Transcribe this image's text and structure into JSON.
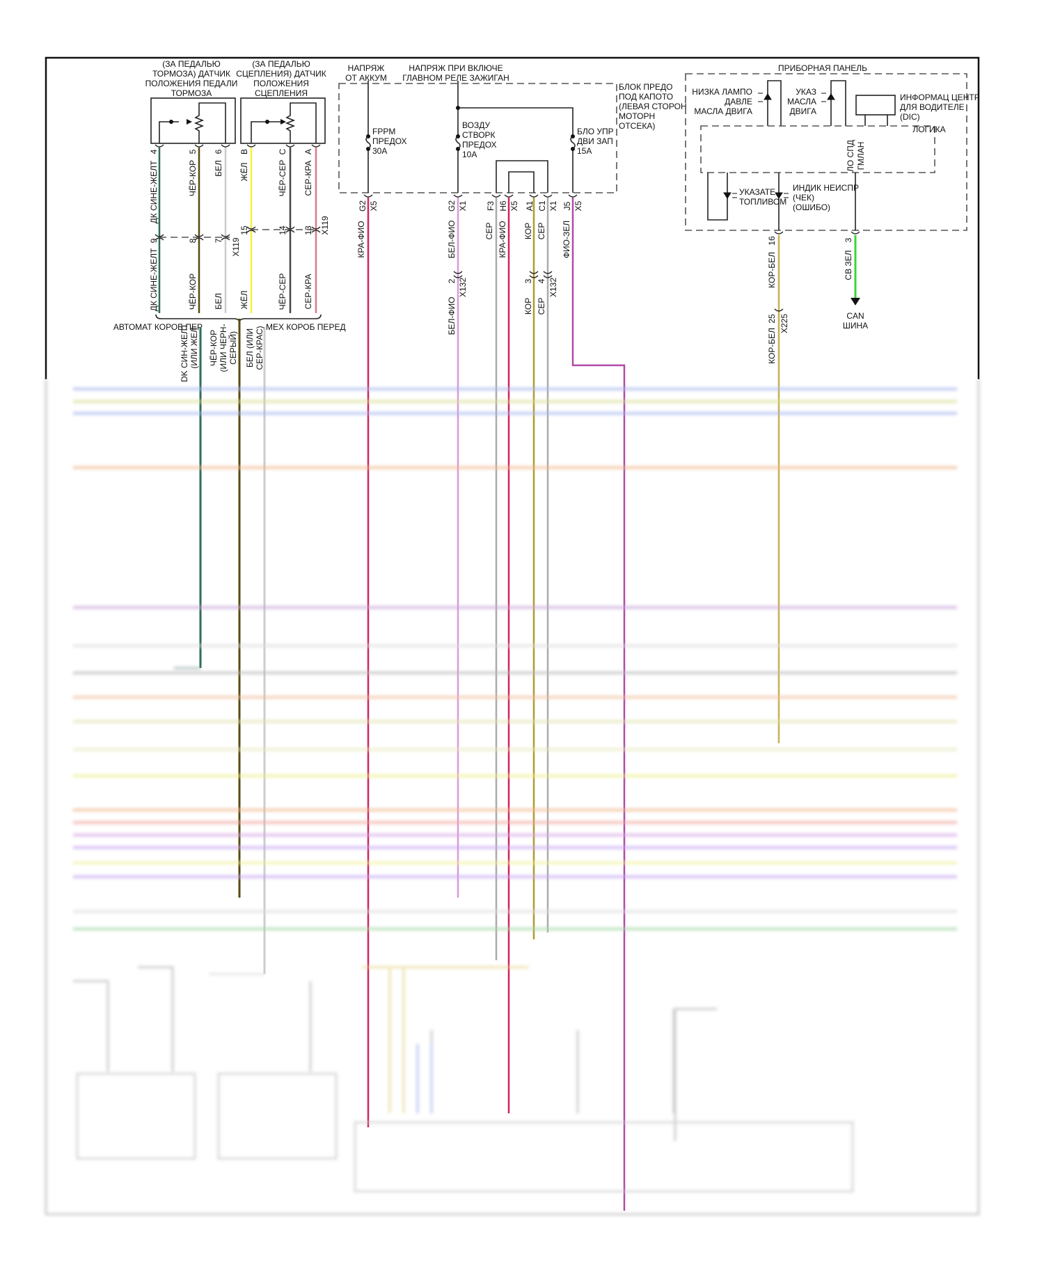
{
  "sensors": {
    "brake_title": [
      "(ЗА ПЕДАЛЬЮ",
      "ТОРМОЗА) ДАТЧИК",
      "ПОЛОЖЕНИЯ ПЕДАЛИ",
      "ТОРМОЗА"
    ],
    "clutch_title": [
      "(ЗА ПЕДАЛЬЮ",
      "СЦЕПЛЕНИЯ) ДАТЧИК",
      "ПОЛОЖЕНИЯ",
      "СЦЕПЛЕНИЯ"
    ]
  },
  "wires_top": [
    {
      "label": "ДК СИНЕ-ЖЕЛТ",
      "pin": "4",
      "pin2": "9",
      "color": "#2e6b5a"
    },
    {
      "label": "ЧЁР-КОР",
      "pin": "5",
      "pin2": "8",
      "color": "#5a4a10"
    },
    {
      "label": "БЕЛ",
      "pin": "6",
      "pin2": "7",
      "color": "#cccccc"
    },
    {
      "label": "ЖЁЛ",
      "pin": "B",
      "pin2": "15",
      "color": "#f5f03a"
    },
    {
      "label": "ЧЁР-СЕР",
      "pin": "C",
      "pin2": "14",
      "color": "#444444"
    },
    {
      "label": "СЕР-КРА",
      "pin": "A",
      "pin2": "13",
      "color": "#d97a8a"
    }
  ],
  "connectors": {
    "x119": "X119",
    "x132": "X132",
    "x225": "X225",
    "x5": "X5",
    "x1": "X1"
  },
  "transmission": {
    "auto": "АВТОМАТ КОРОБ ПЕР",
    "manual": "МЕХ КОРОБ ПЕРЕД",
    "alt1": [
      "DK СИН-ЖЕЛТ",
      "(ИЛИ ЖЕЛ"
    ],
    "alt2": [
      "ЧЁР-КОР",
      "(ИЛИ ЧЕРН-",
      "СЕРЫЙ)"
    ],
    "alt3": [
      "БЕЛ (ИЛИ",
      "СЕР-КРАС)"
    ]
  },
  "fuse_block": {
    "batt_label": [
      "НАПРЯЖ",
      "ОТ АККУМ"
    ],
    "ign_label": [
      "НАПРЯЖ ПРИ ВКЛЮЧЕ",
      "ГЛАВНОМ РЕЛЕ ЗАЖИГАН"
    ],
    "block_label": [
      "БЛОК ПРЕДО",
      "ПОД КАПОТО",
      "(ЛЕВАЯ СТОРОН",
      "МОТОРН",
      "ОТСЕКА)"
    ],
    "fuse1": [
      "FPPM",
      "ПРЕДОХ",
      "30A"
    ],
    "fuse2": [
      "ВОЗДУ",
      "СТВОРК",
      "ПРЕДОХ",
      "10A"
    ],
    "fuse3": [
      "БЛО УПР",
      "ДВИ ЗАП",
      "15A"
    ],
    "wires": [
      {
        "pin": "G2",
        "conn": "X5",
        "label": "КРА-ФИО",
        "color": "#d0245a"
      },
      {
        "pin": "G2",
        "conn": "X1",
        "label": "БЕЛ-ФИО",
        "label2": "БЕЛ-ФИО",
        "pin2": "2",
        "color": "#d99ad9"
      },
      {
        "pin": "F3",
        "label": "СЕР",
        "color": "#aaaaaa"
      },
      {
        "pin": "H6",
        "conn": "X5",
        "label": "КРА-ФИО",
        "color": "#d0245a"
      },
      {
        "pin": "A1",
        "label": "КОР",
        "label2": "КОР",
        "pin2": "3",
        "color": "#b09a30"
      },
      {
        "pin": "C1",
        "conn": "X1",
        "label": "СЕР",
        "label2": "СЕР",
        "pin2": "4",
        "color": "#aaaaaa"
      },
      {
        "pin": "J5",
        "conn": "X5",
        "label": "ФИО-ЗЕЛ",
        "color": "#b04aa8"
      }
    ]
  },
  "instrument_panel": {
    "title": "ПРИБОРНАЯ ПАНЕЛЬ",
    "oil_pressure": [
      "НИЗКА ЛАМПО",
      "ДАВЛЕ",
      "МАСЛА ДВИГА"
    ],
    "oil_level": [
      "УКАЗ",
      "МАСЛА",
      "ДВИГА"
    ],
    "dic": [
      "ИНФОРМАЦ ЦЕНТР",
      "ДЛЯ ВОДИТЕЛЕ",
      "(DIC)"
    ],
    "logic": "ЛОГИКА",
    "gmlan": [
      "ЛО СПД",
      "ГМЛАН"
    ],
    "fuel": [
      "УКАЗАТЕ",
      "ТОПЛИВОМ"
    ],
    "mil": [
      "ИНДИК НЕИСПР",
      "(ЧЕК)",
      "(ОШИБО)"
    ],
    "wire1": {
      "pin": "16",
      "label": "КОР-БЕЛ",
      "pin2": "25",
      "label2": "КОР-БЕЛ",
      "color": "#c8b050"
    },
    "wire2": {
      "pin": "3",
      "label": "СВ ЗЕЛ",
      "color": "#3ad43a"
    },
    "can": [
      "CAN",
      "ШИНА"
    ]
  },
  "blurred_lines": [
    {
      "color": "#a9b8ee"
    },
    {
      "color": "#d8dc98"
    },
    {
      "color": "#a9b8ee"
    },
    {
      "color": "#f0b890"
    },
    {
      "color": "#c8a8d8"
    },
    {
      "color": "#dddddd"
    },
    {
      "color": "#bbbbbb"
    },
    {
      "color": "#f0c0a0"
    },
    {
      "color": "#e0e0b0"
    },
    {
      "color": "#e8e8c0"
    },
    {
      "color": "#eeee90"
    },
    {
      "color": "#f0b890"
    },
    {
      "color": "#f0a8a0"
    },
    {
      "color": "#d8a8e8"
    },
    {
      "color": "#c8a8f0"
    },
    {
      "color": "#f0f0a0"
    },
    {
      "color": "#c8a8f0"
    },
    {
      "color": "#dddddd"
    },
    {
      "color": "#a8d8a8"
    }
  ]
}
